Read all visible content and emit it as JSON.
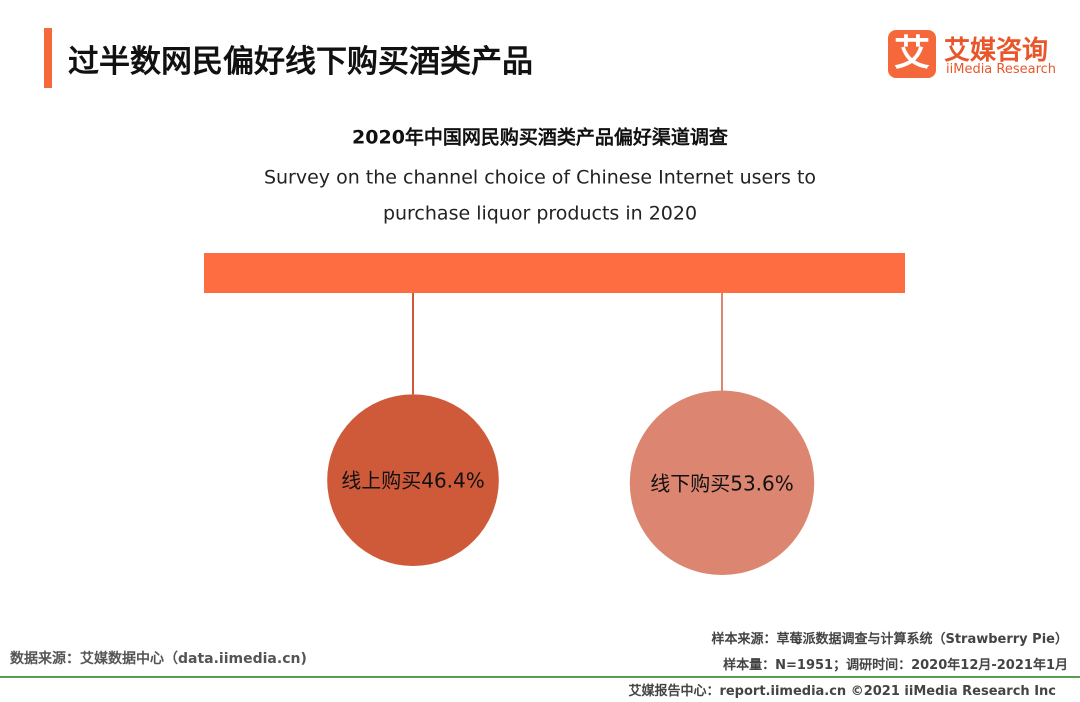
{
  "header": {
    "title": "过半数网民偏好线下购买酒类产品",
    "logo_mark": "艾",
    "logo_name": "艾媒咨询",
    "logo_sub": "iiMedia Research"
  },
  "chart_data": {
    "type": "bubble",
    "title": "2020年中国网民购买酒类产品偏好渠道调查",
    "subtitle_lines": [
      "Survey on the channel choice of Chinese Internet users to",
      "purchase liquor products in 2020"
    ],
    "values": [
      46.4,
      53.6
    ],
    "value_labels": [
      "线上购买46.4%",
      "线下购买53.6%"
    ],
    "colors": [
      "#cf5a3a",
      "#dc8570"
    ],
    "bar_color": "#fd6d41"
  },
  "footer": {
    "source": "数据来源：艾媒数据中心（data.iimedia.cn)",
    "sample_source": "样本来源：草莓派数据调查与计算系统（Strawberry Pie）",
    "sample_size": "样本量：N=1951；调研时间：2020年12月-2021年1月",
    "credit": "艾媒报告中心：report.iimedia.cn   ©2021  iiMedia Research  Inc"
  }
}
